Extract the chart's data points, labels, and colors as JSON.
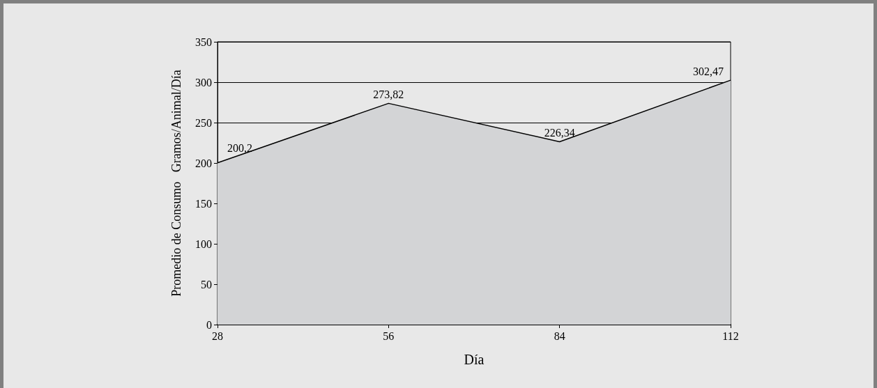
{
  "chart_data": {
    "type": "area",
    "xlabel": "Día",
    "ylabel": "Promedio de Consumo   Gramos/Animal/Día",
    "x": [
      28,
      56,
      84,
      112
    ],
    "values": [
      200.2,
      273.82,
      226.34,
      302.47
    ],
    "value_labels": [
      "200,2",
      "273,82",
      "226,34",
      "302,47"
    ],
    "color": "#d3d4d6",
    "xlim": [
      28,
      112
    ],
    "xticks": [
      28,
      56,
      84,
      112
    ],
    "ylim": [
      0,
      350
    ],
    "yticks": [
      0,
      50,
      100,
      150,
      200,
      250,
      300,
      350
    ],
    "grid": "y"
  }
}
